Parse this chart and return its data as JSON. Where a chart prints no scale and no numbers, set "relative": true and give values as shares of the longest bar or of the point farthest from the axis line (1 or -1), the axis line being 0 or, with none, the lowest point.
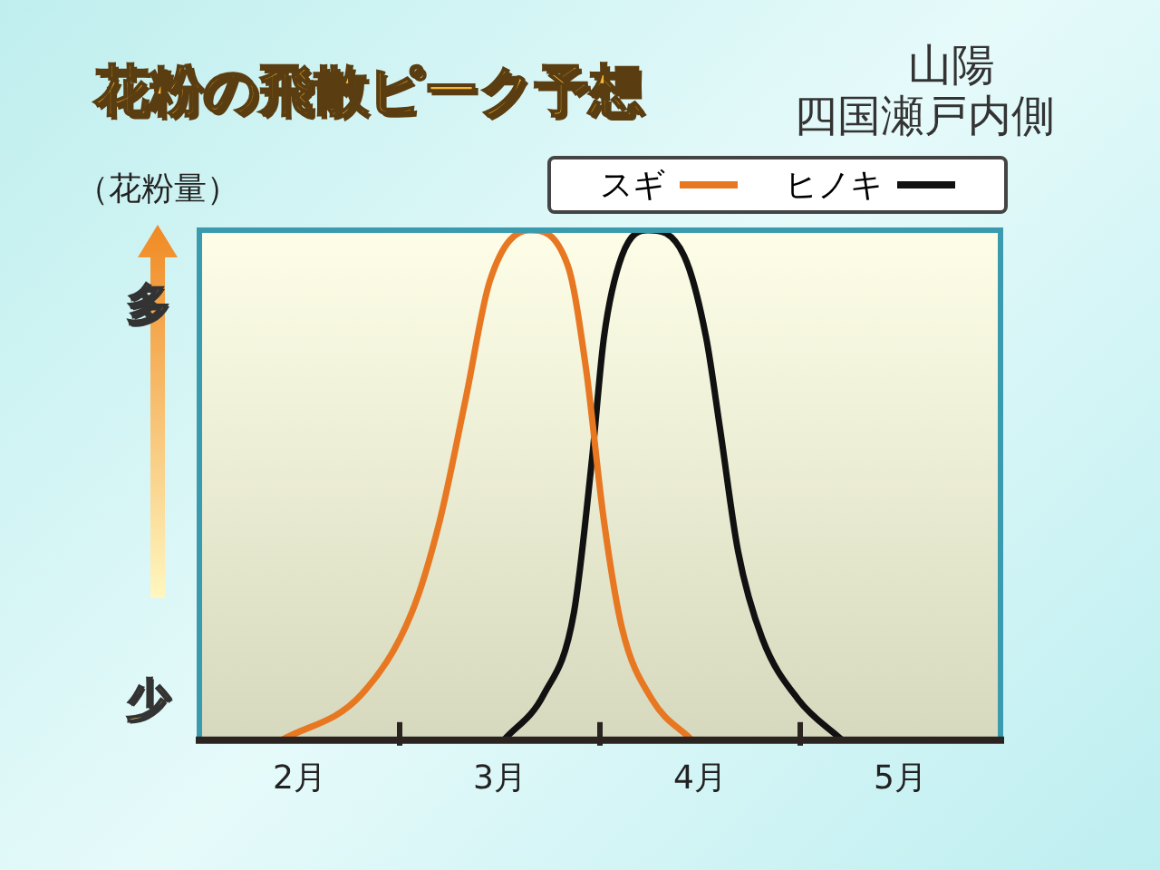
{
  "chart_data": {
    "type": "line",
    "title": "花粉の飛散ピーク予想",
    "subtitle": "山陽",
    "ylabel": "（花粉量）",
    "annotations": [
      "多",
      "少",
      "四国瀬戸内側"
    ],
    "relative": true,
    "xlim": [
      2,
      6
    ],
    "xticks": [
      {
        "value": 2.5,
        "label": "2月"
      },
      {
        "value": 3,
        "label": null
      },
      {
        "value": 3.5,
        "label": "3月"
      },
      {
        "value": 4,
        "label": null
      },
      {
        "value": 4.5,
        "label": "4月"
      },
      {
        "value": 5,
        "label": null
      },
      {
        "value": 5.5,
        "label": "5月"
      }
    ],
    "legend": "top right",
    "marker": "none",
    "line_style": "solid",
    "series": [
      {
        "name": "スギ",
        "color": "#e87722",
        "x": [
          2.41,
          2.81,
          3.06,
          3.2,
          3.33,
          3.45,
          3.65,
          3.84,
          3.93,
          4.02,
          4.11,
          4.26,
          4.46
        ],
        "values": [
          0,
          0.09,
          0.25,
          0.43,
          0.67,
          0.9,
          1,
          0.93,
          0.73,
          0.43,
          0.22,
          0.08,
          0
        ]
      },
      {
        "name": "ヒノキ",
        "color": "#111111",
        "x": [
          3.52,
          3.72,
          3.87,
          3.96,
          4.02,
          4.11,
          4.24,
          4.42,
          4.53,
          4.6,
          4.69,
          4.81,
          4.99,
          5.21
        ],
        "values": [
          0,
          0.09,
          0.25,
          0.55,
          0.79,
          0.95,
          1,
          0.95,
          0.79,
          0.61,
          0.37,
          0.2,
          0.08,
          0
        ]
      }
    ]
  }
}
